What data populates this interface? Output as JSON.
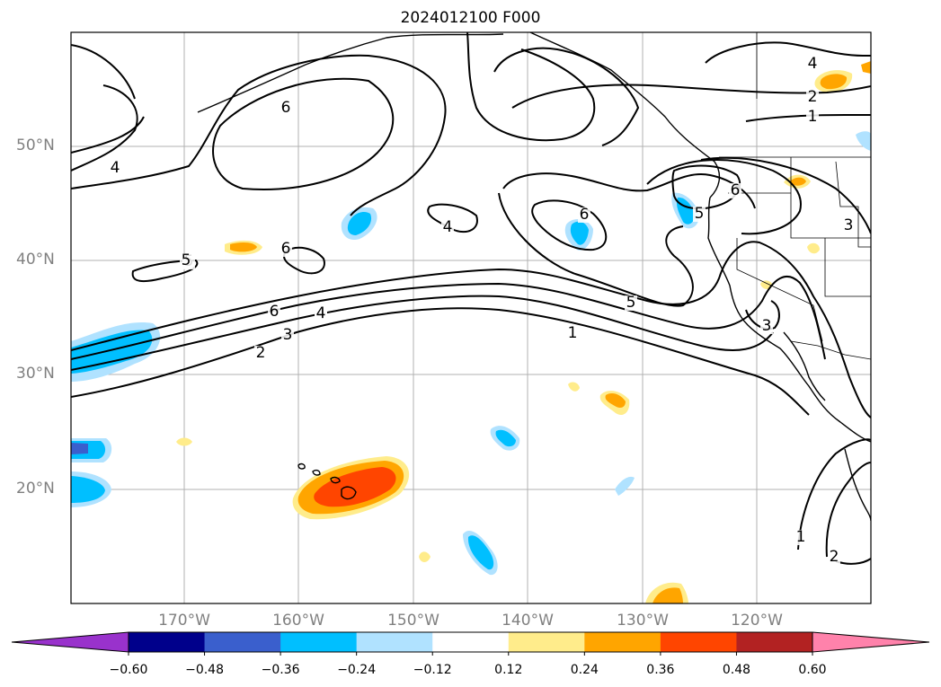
{
  "title": "2024012100 F000",
  "lat_labels": [
    "50°N",
    "40°N",
    "30°N",
    "20°N"
  ],
  "lon_labels": [
    "170°W",
    "160°W",
    "150°W",
    "140°W",
    "130°W",
    "120°W"
  ],
  "contour_labels": [
    "6",
    "4",
    "4",
    "6",
    "5",
    "4",
    "6",
    "6",
    "5",
    "4",
    "2",
    "1",
    "6",
    "5",
    "3",
    "5",
    "4",
    "3",
    "2",
    "1",
    "3",
    "1",
    "2",
    "4"
  ],
  "colorbar": {
    "ticks": [
      "−0.60",
      "−0.48",
      "−0.36",
      "−0.24",
      "−0.12",
      "0.12",
      "0.24",
      "0.36",
      "0.48",
      "0.60"
    ],
    "colors": [
      "#9932cc",
      "#00008b",
      "#3a5fcd",
      "#00bfff",
      "#b0e2ff",
      "#ffffff",
      "#ffec8b",
      "#ffa500",
      "#ff4500",
      "#b22222",
      "#ff82ab"
    ]
  }
}
